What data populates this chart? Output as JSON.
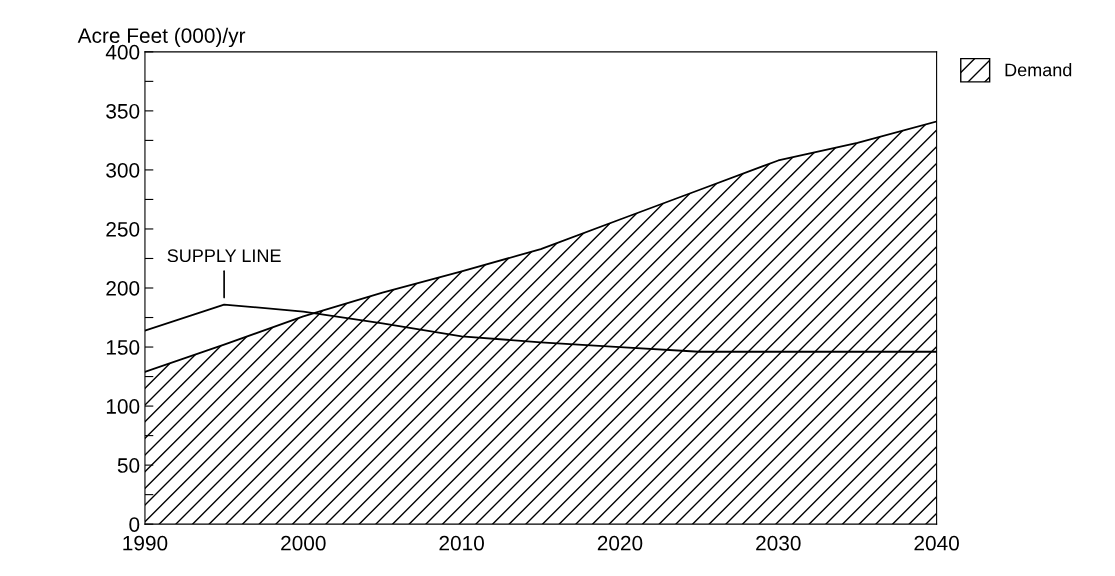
{
  "chart_data": {
    "type": "area",
    "ylabel": "Acre Feet (000)/yr",
    "x": [
      1990,
      1995,
      2000,
      2005,
      2010,
      2015,
      2020,
      2025,
      2030,
      2035,
      2040
    ],
    "series": [
      {
        "name": "Demand",
        "color": "#000000",
        "values": [
          129,
          152,
          176,
          196,
          214,
          233,
          258,
          283,
          308,
          323,
          341
        ]
      },
      {
        "name": "SUPPLY LINE",
        "type": "line",
        "color": "#000000",
        "values": [
          164,
          186,
          180,
          170,
          159,
          154,
          150,
          146,
          146,
          146,
          146
        ]
      }
    ],
    "xlim": [
      1990,
      2040
    ],
    "xticks": [
      1990,
      2000,
      2010,
      2020,
      2030,
      2040
    ],
    "ylim": [
      0,
      400
    ],
    "yticks": [
      0,
      {
        "value": 25,
        "label": null
      },
      50,
      {
        "value": 75,
        "label": null
      },
      100,
      {
        "value": 125,
        "label": null
      },
      150,
      {
        "value": 175,
        "label": null
      },
      200,
      {
        "value": 225,
        "label": null
      },
      250,
      {
        "value": 275,
        "label": null
      },
      300,
      {
        "value": 325,
        "label": null
      },
      350,
      {
        "value": 375,
        "label": null
      },
      400
    ],
    "grid": false,
    "legend": "top right",
    "line_style": "solid"
  }
}
